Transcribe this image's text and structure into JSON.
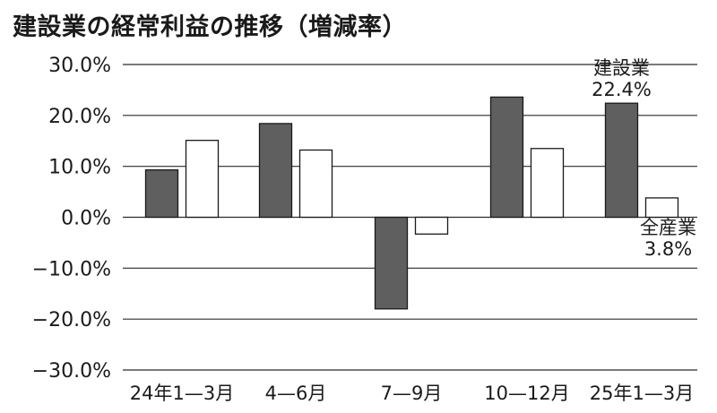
{
  "title": "建設業の経常利益の推移（増減率）",
  "chart_data": {
    "type": "bar",
    "title": "建設業の経常利益の推移（増減率）",
    "xlabel": "",
    "ylabel": "",
    "categories": [
      "24年1—3月",
      "4—6月",
      "7—9月",
      "10—12月",
      "25年1—3月"
    ],
    "ylim": [
      -30,
      30
    ],
    "yticks": [
      30,
      20,
      10,
      0,
      -10,
      -20,
      -30
    ],
    "ytick_labels": [
      "30.0%",
      "20.0%",
      "10.0%",
      "0.0%",
      "−10.0%",
      "−20.0%",
      "−30.0%"
    ],
    "grid": true,
    "series": [
      {
        "name": "建設業",
        "fill": "#5f5f5f",
        "values": [
          9.3,
          18.4,
          -18.0,
          23.6,
          22.4
        ]
      },
      {
        "name": "全産業",
        "fill": "#ffffff",
        "values": [
          15.1,
          13.2,
          -3.3,
          13.5,
          3.8
        ]
      }
    ],
    "annotations": [
      {
        "name": "建設業",
        "value": "22.4%",
        "series": 0,
        "category": 4
      },
      {
        "name": "全産業",
        "value": "3.8%",
        "series": 1,
        "category": 4
      }
    ]
  }
}
